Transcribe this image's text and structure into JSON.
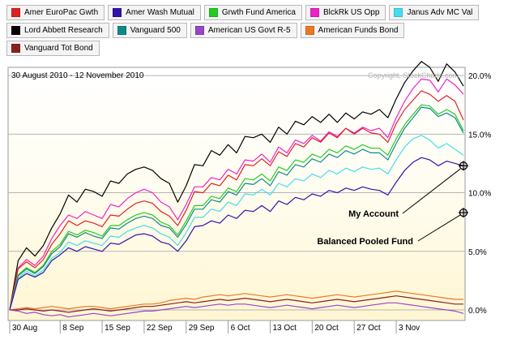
{
  "legend": {
    "rows": [
      [
        {
          "name": "Amer EuroPac Gwth",
          "color": "#dd2222"
        },
        {
          "name": "Amer Wash Mutual",
          "color": "#3311aa"
        },
        {
          "name": "Grwth Fund America",
          "color": "#22cc22"
        },
        {
          "name": "BlckRk US Opp",
          "color": "#ee22cc"
        },
        {
          "name": "Janus Adv MC Val",
          "color": "#44ddee"
        }
      ],
      [
        {
          "name": "Lord Abbett Research",
          "color": "#000000"
        },
        {
          "name": "Vanguard 500",
          "color": "#118888"
        },
        {
          "name": "American US Govt R-5",
          "color": "#9944cc"
        },
        {
          "name": "American Funds Bond",
          "color": "#ee7722"
        }
      ],
      [
        {
          "name": "Vanguard Tot Bond",
          "color": "#882222"
        }
      ]
    ]
  },
  "chart_data": {
    "type": "line",
    "date_range": "30 August 2010 - 12 November 2010",
    "copyright": "Copyright, StockCharts.com",
    "x_tick_labels": [
      "30 Aug",
      "8 Sep",
      "15 Sep",
      "22 Sep",
      "29 Sep",
      "6 Oct",
      "13 Oct",
      "20 Oct",
      "27 Oct",
      "3 Nov"
    ],
    "x_tick_index": [
      0,
      6,
      11,
      16,
      21,
      26,
      31,
      36,
      41,
      46
    ],
    "y_tick_labels": [
      "0.0%",
      "5.0%",
      "10.0%",
      "15.0%",
      "20.0%"
    ],
    "y_tick_values": [
      0,
      5,
      10,
      15,
      20
    ],
    "ylim": [
      -0.9,
      20.7
    ],
    "annotations": [
      {
        "text": "My Account",
        "series_index": 6
      },
      {
        "text": "Balanced Pooled Fund",
        "value": 8.3
      }
    ],
    "series": [
      {
        "name": "Lord Abbett Research",
        "color": "#000000",
        "values": [
          0,
          4.2,
          5.3,
          4.6,
          5.5,
          7,
          8.2,
          9.8,
          9.2,
          10.3,
          10.1,
          9.7,
          11,
          10.8,
          11.6,
          12,
          12.2,
          11.9,
          11.2,
          10.8,
          9.2,
          10.6,
          12.4,
          12.3,
          13.6,
          13.2,
          14.1,
          13.4,
          14.8,
          14.7,
          15,
          14.3,
          15.6,
          15,
          16.1,
          15.8,
          16.5,
          16,
          16.7,
          16,
          16.8,
          16.3,
          16.9,
          16.7,
          17.1,
          16.4,
          18,
          19.4,
          20.4,
          21.2,
          20.7,
          19.5,
          21,
          20.3,
          19.1
        ]
      },
      {
        "name": "BlckRk US Opp",
        "color": "#ee22cc",
        "values": [
          0,
          3.6,
          4.3,
          3.8,
          4.6,
          6.1,
          7.2,
          8.1,
          7.8,
          8.4,
          8.1,
          7.8,
          9,
          8.8,
          9.5,
          10,
          10.3,
          10,
          9.2,
          8.8,
          7.7,
          9,
          10.5,
          10.5,
          11.3,
          11.1,
          12,
          11.6,
          12.8,
          12.7,
          13.3,
          12.6,
          13.9,
          13.4,
          14.5,
          14.2,
          14.9,
          14.4,
          15.2,
          14.8,
          15.5,
          15.1,
          15.6,
          15.3,
          15.5,
          14.7,
          16.4,
          17.8,
          18.9,
          19.7,
          19.6,
          18.6,
          19.7,
          19.2,
          18.4
        ]
      },
      {
        "name": "Amer EuroPac Gwth",
        "color": "#dd2222",
        "values": [
          0,
          3.5,
          4.1,
          3.6,
          4.3,
          5.6,
          6.5,
          7.6,
          7.2,
          7.6,
          7.4,
          7.1,
          8.1,
          8,
          8.6,
          9.1,
          9.3,
          9.1,
          8.4,
          8,
          7.2,
          8.5,
          10.1,
          10,
          10.8,
          10.6,
          11.5,
          11.1,
          12.4,
          12.3,
          12.9,
          12.3,
          13.5,
          13.1,
          14.2,
          13.9,
          14.7,
          14.3,
          15.1,
          14.7,
          15.5,
          15,
          15.5,
          15.1,
          15,
          14.3,
          15.9,
          17.1,
          17.9,
          18.7,
          18.4,
          17.8,
          18.3,
          17.8,
          16.2
        ]
      },
      {
        "name": "Grwth Fund America",
        "color": "#22cc22",
        "values": [
          0,
          3,
          3.6,
          3.2,
          3.8,
          5,
          5.6,
          6.7,
          6.4,
          6.8,
          6.6,
          6.3,
          7.2,
          7.2,
          7.7,
          8.1,
          8.3,
          8.1,
          7.5,
          7.2,
          6.4,
          7.6,
          8.9,
          8.9,
          9.7,
          9.5,
          10.4,
          10.1,
          11.2,
          11.1,
          11.6,
          11,
          12.2,
          11.9,
          12.8,
          12.6,
          13.3,
          13,
          13.7,
          13.4,
          14,
          13.7,
          14.1,
          13.8,
          13.8,
          13.2,
          14.6,
          15.8,
          16.7,
          17.5,
          17.4,
          16.7,
          17.1,
          16.7,
          15.3
        ]
      },
      {
        "name": "Vanguard 500",
        "color": "#118888",
        "values": [
          0,
          2.9,
          3.5,
          3.1,
          3.7,
          4.8,
          5.4,
          6.5,
          6.2,
          6.6,
          6.3,
          6.1,
          7,
          6.9,
          7.4,
          7.8,
          8,
          7.8,
          7.2,
          7,
          6.2,
          7.3,
          8.6,
          8.6,
          9.4,
          9.2,
          10.1,
          9.8,
          10.8,
          10.7,
          11.2,
          10.6,
          11.8,
          11.5,
          12.4,
          12.2,
          12.9,
          12.6,
          13.3,
          13,
          13.6,
          13.3,
          13.7,
          13.4,
          13.4,
          12.8,
          14.2,
          15.5,
          16.4,
          17.3,
          17.2,
          16.5,
          16.8,
          16.4,
          15.1
        ]
      },
      {
        "name": "Janus Adv MC Val",
        "color": "#44ddee",
        "values": [
          0,
          2.7,
          3.3,
          2.9,
          3.4,
          4.4,
          4.9,
          5.8,
          5.5,
          5.9,
          5.7,
          5.5,
          6.3,
          6.2,
          6.7,
          7,
          7.2,
          7,
          6.5,
          6.2,
          5.5,
          6.6,
          7.9,
          7.9,
          8.6,
          8.4,
          9.2,
          8.9,
          9.9,
          9.8,
          10.3,
          9.8,
          10.8,
          10.5,
          11.2,
          11,
          11.6,
          11.3,
          11.9,
          11.6,
          12.1,
          11.8,
          12.2,
          12,
          12.1,
          11.6,
          12.8,
          13.9,
          14.6,
          14.9,
          14.5,
          13.8,
          14.2,
          13.7,
          13.2
        ]
      },
      {
        "name": "Amer Wash Mutual",
        "color": "#3311aa",
        "values": [
          0,
          2.6,
          3.1,
          2.8,
          3.2,
          4.2,
          4.7,
          5.3,
          5,
          5.4,
          5.2,
          5,
          5.7,
          5.6,
          6,
          6.4,
          6.5,
          6.3,
          5.8,
          5.6,
          5,
          5.9,
          7.1,
          7.2,
          7.6,
          7.4,
          8.1,
          7.8,
          8.5,
          8.4,
          8.9,
          8.4,
          9.3,
          9,
          9.6,
          9.4,
          9.9,
          9.7,
          10.2,
          10,
          10.4,
          10.2,
          10.5,
          10.3,
          10.2,
          9.8,
          10.9,
          11.9,
          12.6,
          13,
          12.8,
          12.3,
          12.7,
          12.5,
          12.3
        ]
      },
      {
        "name": "American Funds Bond",
        "color": "#ee7722",
        "values": [
          0,
          0.1,
          0.2,
          0.1,
          0.2,
          0.3,
          0.2,
          0.1,
          0.2,
          0.3,
          0.3,
          0.2,
          0.1,
          0.2,
          0.3,
          0.4,
          0.5,
          0.5,
          0.6,
          0.8,
          0.9,
          1,
          0.9,
          1.1,
          1.2,
          1.3,
          1.2,
          1.3,
          1.4,
          1.3,
          1.2,
          1.1,
          1.2,
          1.3,
          1.2,
          1.1,
          1,
          1.1,
          1.2,
          1.3,
          1.2,
          1.1,
          1.2,
          1.3,
          1.4,
          1.5,
          1.6,
          1.5,
          1.4,
          1.3,
          1.2,
          1.1,
          1,
          0.9,
          0.9
        ]
      },
      {
        "name": "Vanguard Tot Bond",
        "color": "#882222",
        "values": [
          0,
          0,
          0.1,
          0,
          -0.1,
          0,
          -0.1,
          -0.2,
          -0.1,
          0,
          0.1,
          0,
          -0.1,
          0,
          0.1,
          0.2,
          0.3,
          0.3,
          0.4,
          0.5,
          0.6,
          0.7,
          0.6,
          0.7,
          0.8,
          0.9,
          0.8,
          0.9,
          1,
          0.9,
          0.8,
          0.7,
          0.8,
          0.9,
          0.8,
          0.7,
          0.6,
          0.7,
          0.8,
          0.9,
          0.8,
          0.7,
          0.8,
          0.9,
          1,
          1.1,
          1.2,
          1.1,
          1,
          0.9,
          0.8,
          0.7,
          0.6,
          0.5,
          0.5
        ]
      },
      {
        "name": "American US Govt R-5",
        "color": "#9944cc",
        "values": [
          0,
          -0.1,
          -0.3,
          -0.2,
          -0.4,
          -0.5,
          -0.4,
          -0.6,
          -0.5,
          -0.4,
          -0.3,
          -0.4,
          -0.5,
          -0.4,
          -0.3,
          -0.2,
          -0.1,
          -0.1,
          0,
          0.1,
          0.2,
          0.3,
          0.2,
          0.3,
          0.4,
          0.5,
          0.4,
          0.5,
          0.5,
          0.4,
          0.3,
          0.2,
          0.3,
          0.4,
          0.3,
          0.2,
          0.1,
          0.2,
          0.3,
          0.4,
          0.3,
          0.2,
          0.3,
          0.4,
          0.5,
          0.6,
          0.6,
          0.5,
          0.4,
          0.3,
          0.2,
          0.1,
          0,
          -0.1,
          -0.3
        ]
      }
    ]
  }
}
